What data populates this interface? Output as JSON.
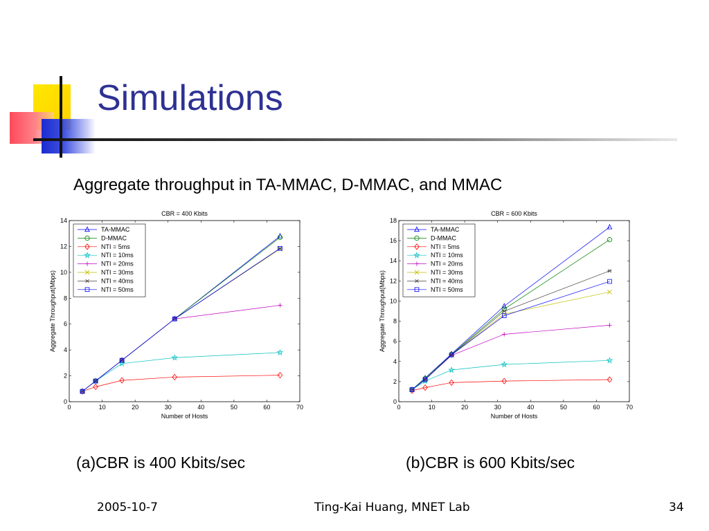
{
  "slide": {
    "title": "Simulations",
    "subtitle": "Aggregate throughput in TA-MMAC, D-MMAC, and MMAC",
    "caption_a": "(a)CBR is 400 Kbits/sec",
    "caption_b": "(b)CBR is 600 Kbits/sec",
    "footer": {
      "date": "2005-10-7",
      "center": "Ting-Kai Huang, MNET Lab",
      "page": "34"
    }
  },
  "chart_data": [
    {
      "type": "line",
      "title": "CBR = 400 Kbits",
      "xlabel": "Number of Hosts",
      "ylabel": "Aggregate Throughput(Mbps)",
      "xlim": [
        0,
        70
      ],
      "ylim": [
        0,
        14
      ],
      "xticks": [
        0,
        10,
        20,
        30,
        40,
        50,
        60,
        70
      ],
      "yticks": [
        0,
        2,
        4,
        6,
        8,
        10,
        12,
        14
      ],
      "legend_position": "top-left",
      "x": [
        4,
        8,
        16,
        32,
        64
      ],
      "series": [
        {
          "name": "TA-MMAC",
          "marker": "triangle",
          "color": "#0000ff",
          "values": [
            0.8,
            1.6,
            3.2,
            6.4,
            12.8
          ]
        },
        {
          "name": "D-MMAC",
          "marker": "circle",
          "color": "#008000",
          "values": [
            0.8,
            1.6,
            3.2,
            6.4,
            12.7
          ]
        },
        {
          "name": "NTI = 5ms",
          "marker": "diamond",
          "color": "#ff0000",
          "values": [
            0.8,
            1.15,
            1.65,
            1.9,
            2.05
          ]
        },
        {
          "name": "NTI = 10ms",
          "marker": "star",
          "color": "#00bfbf",
          "values": [
            0.8,
            1.6,
            2.95,
            3.4,
            3.8
          ]
        },
        {
          "name": "NTI = 20ms",
          "marker": "plus",
          "color": "#bf00bf",
          "values": [
            0.8,
            1.6,
            3.2,
            6.4,
            7.45
          ]
        },
        {
          "name": "NTI = 30ms",
          "marker": "x",
          "color": "#bfbf00",
          "values": [
            0.8,
            1.6,
            3.2,
            6.4,
            11.8
          ]
        },
        {
          "name": "NTI = 40ms",
          "marker": "asterisk",
          "color": "#404040",
          "values": [
            0.8,
            1.6,
            3.2,
            6.4,
            11.85
          ]
        },
        {
          "name": "NTI = 50ms",
          "marker": "square",
          "color": "#0000ff",
          "values": [
            0.8,
            1.6,
            3.2,
            6.4,
            11.85
          ]
        }
      ]
    },
    {
      "type": "line",
      "title": "CBR = 600 Kbits",
      "xlabel": "Number of Hosts",
      "ylabel": "Aggregate Throughput(Mbps)",
      "xlim": [
        0,
        70
      ],
      "ylim": [
        0,
        18
      ],
      "xticks": [
        0,
        10,
        20,
        30,
        40,
        50,
        60,
        70
      ],
      "yticks": [
        0,
        2,
        4,
        6,
        8,
        10,
        12,
        14,
        16,
        18
      ],
      "legend_position": "top-left",
      "x": [
        4,
        8,
        16,
        32,
        64
      ],
      "series": [
        {
          "name": "TA-MMAC",
          "marker": "triangle",
          "color": "#0000ff",
          "values": [
            1.2,
            2.35,
            4.75,
            9.5,
            17.35
          ]
        },
        {
          "name": "D-MMAC",
          "marker": "circle",
          "color": "#008000",
          "values": [
            1.2,
            2.3,
            4.7,
            9.2,
            16.1
          ]
        },
        {
          "name": "NTI = 5ms",
          "marker": "diamond",
          "color": "#ff0000",
          "values": [
            1.1,
            1.4,
            1.9,
            2.05,
            2.2
          ]
        },
        {
          "name": "NTI = 10ms",
          "marker": "star",
          "color": "#00bfbf",
          "values": [
            1.2,
            2.05,
            3.15,
            3.7,
            4.1
          ]
        },
        {
          "name": "NTI = 20ms",
          "marker": "plus",
          "color": "#bf00bf",
          "values": [
            1.2,
            2.2,
            4.6,
            6.7,
            7.6
          ]
        },
        {
          "name": "NTI = 30ms",
          "marker": "x",
          "color": "#bfbf00",
          "values": [
            1.2,
            2.2,
            4.65,
            8.7,
            10.9
          ]
        },
        {
          "name": "NTI = 40ms",
          "marker": "asterisk",
          "color": "#404040",
          "values": [
            1.2,
            2.2,
            4.65,
            9.0,
            13.0
          ]
        },
        {
          "name": "NTI = 50ms",
          "marker": "square",
          "color": "#0000ff",
          "values": [
            1.2,
            2.2,
            4.65,
            8.55,
            11.95
          ]
        }
      ]
    }
  ]
}
